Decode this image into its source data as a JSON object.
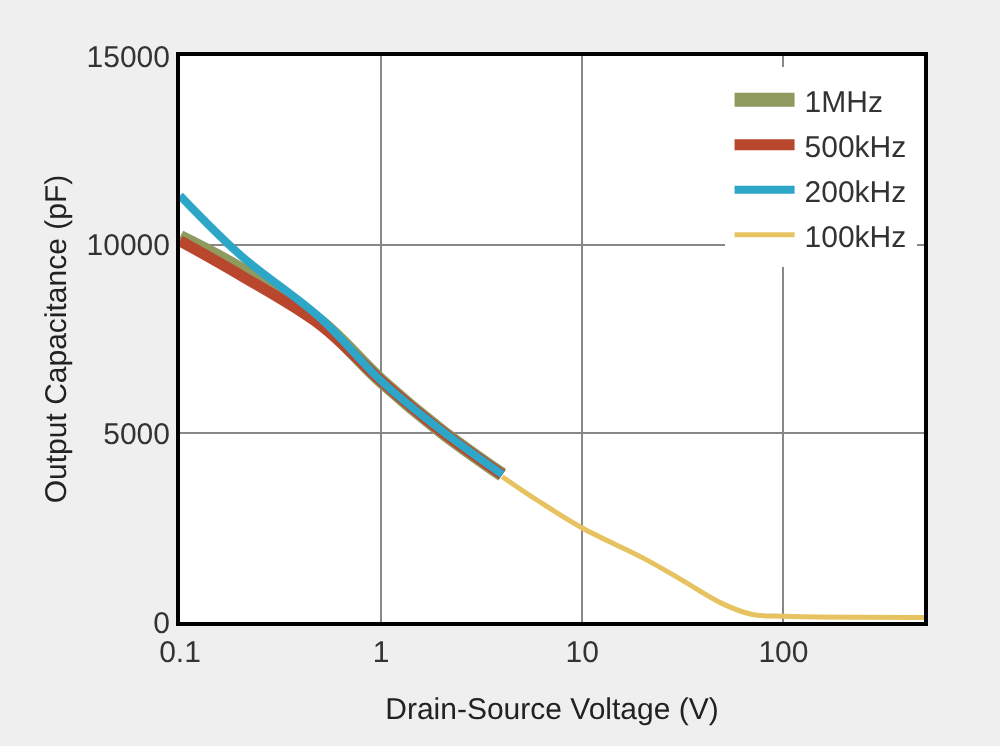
{
  "chart_data": {
    "type": "line",
    "xlabel": "Drain-Source Voltage (V)",
    "ylabel": "Output Capacitance (pF)",
    "log": "x",
    "xlim": [
      0.1,
      500
    ],
    "xticks": [
      0.1,
      1,
      10,
      100
    ],
    "ylim": [
      0,
      15000
    ],
    "yticks": [
      0,
      5000,
      10000,
      15000
    ],
    "grid": true,
    "legend": "top right",
    "line_style": "solid",
    "series": [
      {
        "name": "1MHz",
        "color": "#8f9a5e",
        "x": [
          0.1,
          0.2,
          0.5,
          1,
          2,
          4
        ],
        "values": [
          10200,
          9350,
          7950,
          6390,
          5050,
          3900
        ]
      },
      {
        "name": "500kHz",
        "color": "#b8472e",
        "x": [
          0.1,
          0.2,
          0.5,
          1,
          2,
          4
        ],
        "values": [
          10100,
          9190,
          7870,
          6390,
          5050,
          3900
        ]
      },
      {
        "name": "200kHz",
        "color": "#2ea6c8",
        "x": [
          0.1,
          0.2,
          0.5,
          1,
          2,
          4
        ],
        "values": [
          11300,
          9720,
          8050,
          6390,
          5070,
          3910
        ]
      },
      {
        "name": "100kHz",
        "color": "#e6c260",
        "x": [
          4,
          6,
          10,
          20,
          30,
          50,
          70,
          100,
          500
        ],
        "values": [
          3850,
          3220,
          2490,
          1700,
          1170,
          480,
          200,
          150,
          120
        ]
      }
    ]
  }
}
